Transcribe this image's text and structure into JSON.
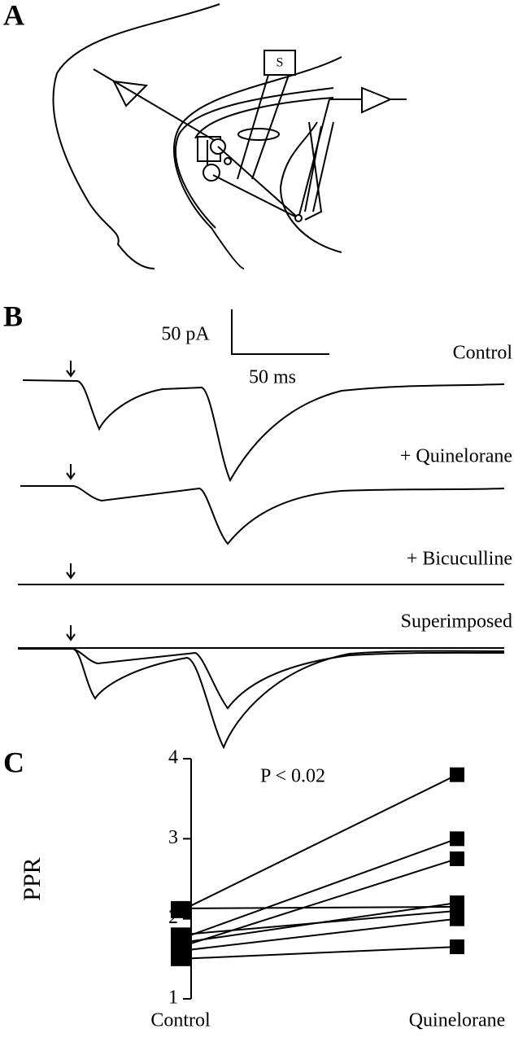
{
  "panel_labels": [
    "A",
    "B",
    "C"
  ],
  "diagram": {
    "stimulus_label": "S"
  },
  "traces": {
    "scale_y": "50 pA",
    "scale_x": "50 ms",
    "labels": [
      "Control",
      "+ Quinelorane",
      "+ Bicuculline",
      "Superimposed"
    ]
  },
  "chart_data": {
    "type": "paired_line",
    "annotation": "P < 0.02",
    "ylabel": "PPR",
    "categories": [
      "Control",
      "Quinelorane"
    ],
    "color": "#000000",
    "series": [
      {
        "values": [
          2.13,
          2.15
        ]
      },
      {
        "values": [
          2.1,
          3.8
        ]
      },
      {
        "values": [
          1.75,
          3.0
        ]
      },
      {
        "values": [
          1.65,
          2.75
        ]
      },
      {
        "values": [
          1.7,
          2.2
        ]
      },
      {
        "values": [
          1.6,
          2.0
        ]
      },
      {
        "values": [
          1.5,
          1.65
        ]
      },
      {
        "values": [
          1.8,
          2.1
        ]
      }
    ],
    "ylim": [
      1,
      4
    ],
    "yticks": [
      1,
      2,
      3,
      4
    ]
  }
}
